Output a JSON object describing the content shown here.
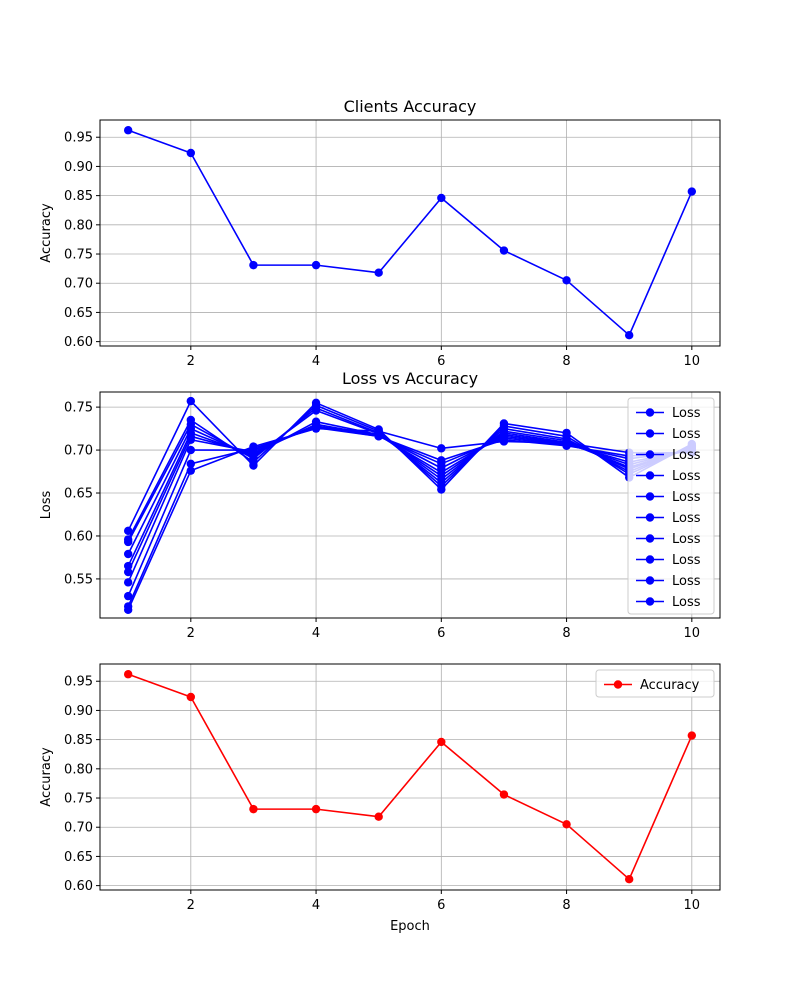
{
  "chart_data": [
    {
      "type": "line",
      "title": "Clients Accuracy",
      "xlabel": "",
      "ylabel": "Accuracy",
      "xlim": [
        0.55,
        10.45
      ],
      "ylim": [
        0.5925,
        0.9795
      ],
      "xticks": [
        2,
        4,
        6,
        8,
        10
      ],
      "yticks": [
        0.6,
        0.65,
        0.7,
        0.75,
        0.8,
        0.85,
        0.9,
        0.95
      ],
      "grid": true,
      "legend": null,
      "series": [
        {
          "color": "#0000ff",
          "marker": "circle",
          "x": [
            1,
            2,
            3,
            4,
            5,
            6,
            7,
            8,
            9,
            10
          ],
          "values": [
            0.962,
            0.923,
            0.731,
            0.731,
            0.718,
            0.846,
            0.756,
            0.705,
            0.611,
            0.857
          ]
        }
      ]
    },
    {
      "type": "line",
      "title": "Loss vs Accuracy",
      "xlabel": "",
      "ylabel": "Loss",
      "xlim": [
        0.55,
        10.45
      ],
      "ylim": [
        0.5045,
        0.7676
      ],
      "xticks": [
        2,
        4,
        6,
        8,
        10
      ],
      "yticks": [
        0.55,
        0.6,
        0.65,
        0.7,
        0.75
      ],
      "grid": true,
      "legend": "top-right",
      "series": [
        {
          "name": "Loss",
          "color": "#0000ff",
          "marker": "circle",
          "x": [
            1,
            2,
            3,
            4,
            5,
            6,
            7,
            8,
            9,
            10
          ],
          "values": [
            0.606,
            0.757,
            0.682,
            0.755,
            0.724,
            0.654,
            0.731,
            0.72,
            0.668,
            0.707
          ]
        },
        {
          "name": "Loss",
          "color": "#0000ff",
          "marker": "circle",
          "x": [
            1,
            2,
            3,
            4,
            5,
            6,
            7,
            8,
            9,
            10
          ],
          "values": [
            0.596,
            0.735,
            0.686,
            0.752,
            0.722,
            0.658,
            0.728,
            0.716,
            0.672,
            0.705
          ]
        },
        {
          "name": "Loss",
          "color": "#0000ff",
          "marker": "circle",
          "x": [
            1,
            2,
            3,
            4,
            5,
            6,
            7,
            8,
            9,
            10
          ],
          "values": [
            0.593,
            0.73,
            0.69,
            0.749,
            0.72,
            0.662,
            0.725,
            0.713,
            0.675,
            0.704
          ]
        },
        {
          "name": "Loss",
          "color": "#0000ff",
          "marker": "circle",
          "x": [
            1,
            2,
            3,
            4,
            5,
            6,
            7,
            8,
            9,
            10
          ],
          "values": [
            0.579,
            0.725,
            0.692,
            0.746,
            0.719,
            0.666,
            0.722,
            0.711,
            0.678,
            0.703
          ]
        },
        {
          "name": "Loss",
          "color": "#0000ff",
          "marker": "circle",
          "x": [
            1,
            2,
            3,
            4,
            5,
            6,
            7,
            8,
            9,
            10
          ],
          "values": [
            0.565,
            0.72,
            0.694,
            0.733,
            0.718,
            0.67,
            0.72,
            0.709,
            0.68,
            0.702
          ]
        },
        {
          "name": "Loss",
          "color": "#0000ff",
          "marker": "circle",
          "x": [
            1,
            2,
            3,
            4,
            5,
            6,
            7,
            8,
            9,
            10
          ],
          "values": [
            0.558,
            0.716,
            0.696,
            0.73,
            0.717,
            0.674,
            0.718,
            0.708,
            0.683,
            0.701
          ]
        },
        {
          "name": "Loss",
          "color": "#0000ff",
          "marker": "circle",
          "x": [
            1,
            2,
            3,
            4,
            5,
            6,
            7,
            8,
            9,
            10
          ],
          "values": [
            0.546,
            0.712,
            0.698,
            0.728,
            0.717,
            0.679,
            0.716,
            0.707,
            0.686,
            0.7
          ]
        },
        {
          "name": "Loss",
          "color": "#0000ff",
          "marker": "circle",
          "x": [
            1,
            2,
            3,
            4,
            5,
            6,
            7,
            8,
            9,
            10
          ],
          "values": [
            0.53,
            0.7,
            0.7,
            0.727,
            0.716,
            0.684,
            0.714,
            0.706,
            0.69,
            0.699
          ]
        },
        {
          "name": "Loss",
          "color": "#0000ff",
          "marker": "circle",
          "x": [
            1,
            2,
            3,
            4,
            5,
            6,
            7,
            8,
            9,
            10
          ],
          "values": [
            0.518,
            0.684,
            0.702,
            0.726,
            0.716,
            0.688,
            0.712,
            0.705,
            0.693,
            0.698
          ]
        },
        {
          "name": "Loss",
          "color": "#0000ff",
          "marker": "circle",
          "x": [
            1,
            2,
            3,
            4,
            5,
            6,
            7,
            8,
            9,
            10
          ],
          "values": [
            0.514,
            0.676,
            0.704,
            0.725,
            0.722,
            0.702,
            0.71,
            0.708,
            0.697,
            0.697
          ]
        }
      ]
    },
    {
      "type": "line",
      "title": "",
      "xlabel": "Epoch",
      "ylabel": "Accuracy",
      "xlim": [
        0.55,
        10.45
      ],
      "ylim": [
        0.5925,
        0.9795
      ],
      "xticks": [
        2,
        4,
        6,
        8,
        10
      ],
      "yticks": [
        0.6,
        0.65,
        0.7,
        0.75,
        0.8,
        0.85,
        0.9,
        0.95
      ],
      "grid": true,
      "legend": "top-right",
      "series": [
        {
          "name": "Accuracy",
          "color": "#ff0000",
          "marker": "circle",
          "x": [
            1,
            2,
            3,
            4,
            5,
            6,
            7,
            8,
            9,
            10
          ],
          "values": [
            0.962,
            0.923,
            0.731,
            0.731,
            0.718,
            0.846,
            0.756,
            0.705,
            0.611,
            0.857
          ]
        }
      ]
    }
  ]
}
